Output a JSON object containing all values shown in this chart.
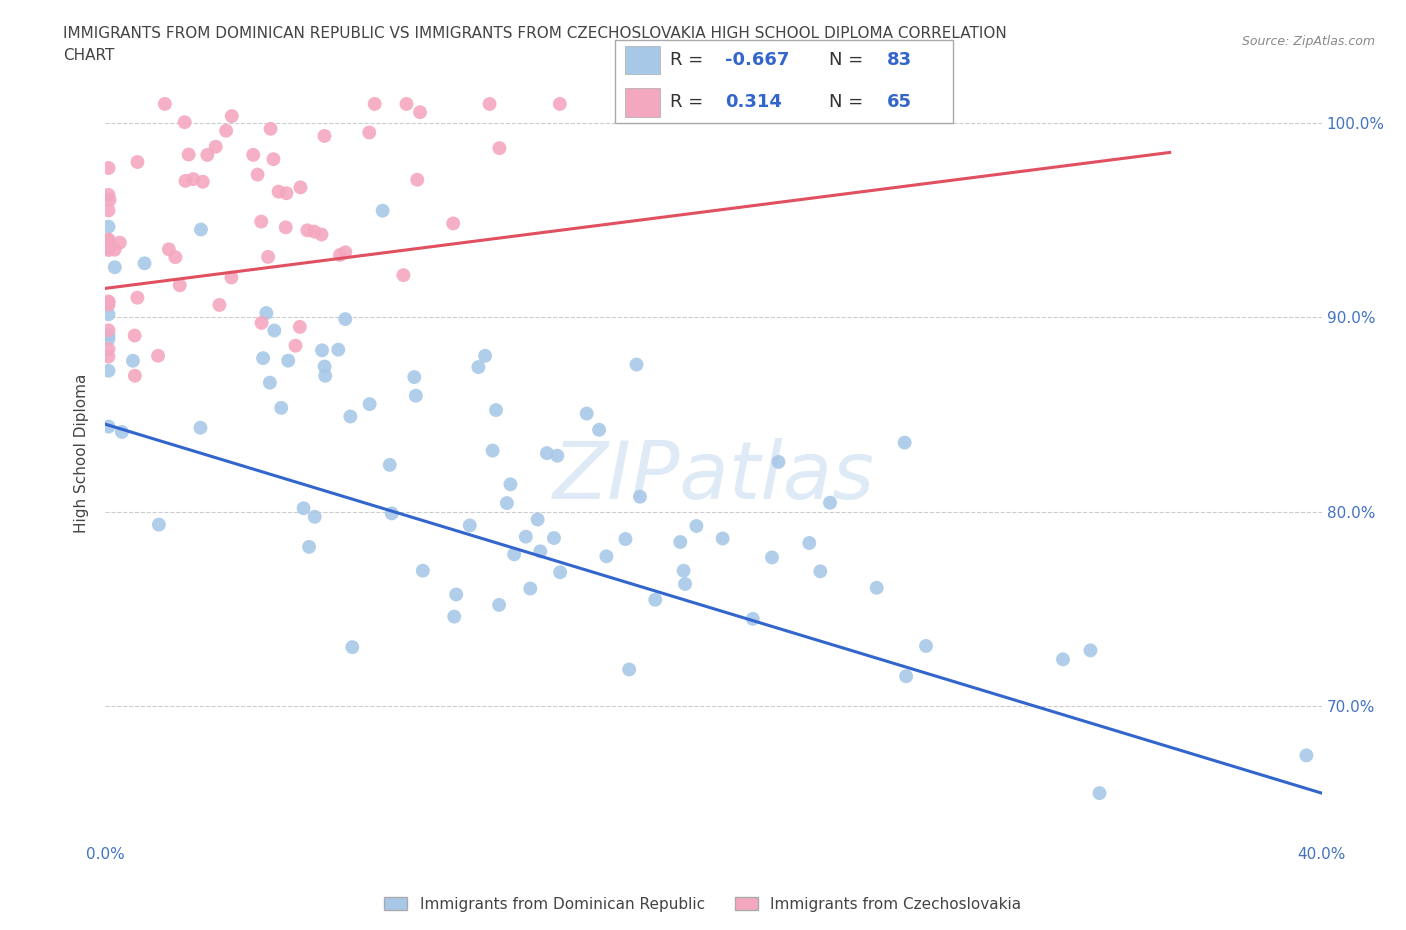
{
  "title_line1": "IMMIGRANTS FROM DOMINICAN REPUBLIC VS IMMIGRANTS FROM CZECHOSLOVAKIA HIGH SCHOOL DIPLOMA CORRELATION",
  "title_line2": "CHART",
  "source": "Source: ZipAtlas.com",
  "ylabel_label": "High School Diploma",
  "legend_label1": "Immigrants from Dominican Republic",
  "legend_label2": "Immigrants from Czechoslovakia",
  "blue_color": "#a8c8e8",
  "pink_color": "#f4a8c0",
  "blue_line_color": "#3366cc",
  "pink_line_color": "#e05060",
  "legend_blue_fill": "#a8c8e8",
  "legend_pink_fill": "#f4a8c0",
  "R_blue": -0.667,
  "N_blue": 83,
  "R_pink": 0.314,
  "N_pink": 65,
  "x_min": 0.0,
  "x_max": 0.4,
  "y_min": 0.63,
  "y_max": 1.03,
  "x_ticks": [
    0.0,
    0.05,
    0.1,
    0.15,
    0.2,
    0.25,
    0.3,
    0.35,
    0.4
  ],
  "y_ticks": [
    0.7,
    0.8,
    0.9,
    1.0
  ],
  "y_tick_labels": [
    "70.0%",
    "80.0%",
    "90.0%",
    "100.0%"
  ],
  "blue_line_x": [
    0.0,
    0.4
  ],
  "blue_line_y": [
    0.845,
    0.655
  ],
  "pink_line_x": [
    0.0,
    0.35
  ],
  "pink_line_y": [
    0.915,
    0.985
  ],
  "watermark": "ZIPatlas"
}
